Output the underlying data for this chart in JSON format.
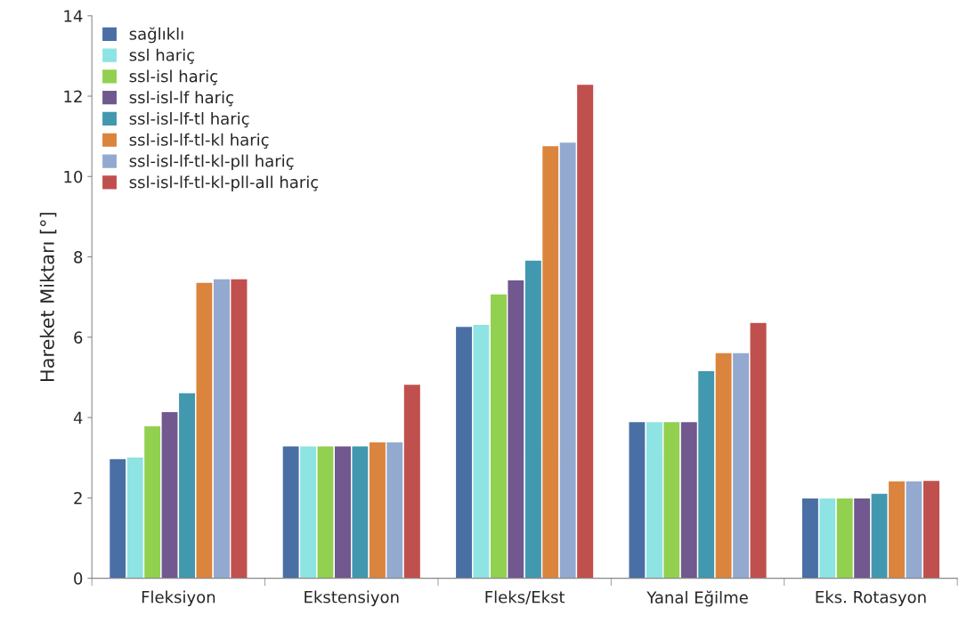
{
  "chart_data": {
    "type": "bar",
    "ylabel": "Hareket Miktarı [°]",
    "categories": [
      "Fleksiyon",
      "Ekstensiyon",
      "Fleks/Ekst",
      "Yanal Eğilme",
      "Eks. Rotasyon"
    ],
    "series": [
      {
        "name": "sağlıklı",
        "color": "#4a6fa5",
        "values": [
          2.98,
          3.3,
          6.27,
          3.9,
          2.0
        ]
      },
      {
        "name": "ssl hariç",
        "color": "#8ee3e3",
        "values": [
          3.02,
          3.3,
          6.32,
          3.9,
          2.0
        ]
      },
      {
        "name": "ssl-isl hariç",
        "color": "#92d050",
        "values": [
          3.8,
          3.3,
          7.08,
          3.9,
          2.0
        ]
      },
      {
        "name": "ssl-isl-lf hariç",
        "color": "#71588f",
        "values": [
          4.15,
          3.3,
          7.43,
          3.9,
          2.0
        ]
      },
      {
        "name": "ssl-isl-lf-tl hariç",
        "color": "#4198af",
        "values": [
          4.62,
          3.3,
          7.92,
          5.17,
          2.12
        ]
      },
      {
        "name": "ssl-isl-lf-tl-kl hariç",
        "color": "#db843d",
        "values": [
          7.37,
          3.4,
          10.77,
          5.62,
          2.43
        ]
      },
      {
        "name": "ssl-isl-lf-tl-kl-pll hariç",
        "color": "#93a9cf",
        "values": [
          7.46,
          3.4,
          10.86,
          5.62,
          2.43
        ]
      },
      {
        "name": "ssl-isl-lf-tl-kl-pll-all hariç",
        "color": "#c0504d",
        "values": [
          7.46,
          4.83,
          12.3,
          6.37,
          2.44
        ]
      }
    ],
    "ylim": [
      0,
      14
    ],
    "yticks": [
      0,
      2,
      4,
      6,
      8,
      10,
      12,
      14
    ],
    "grid": false,
    "legend": "top left"
  }
}
